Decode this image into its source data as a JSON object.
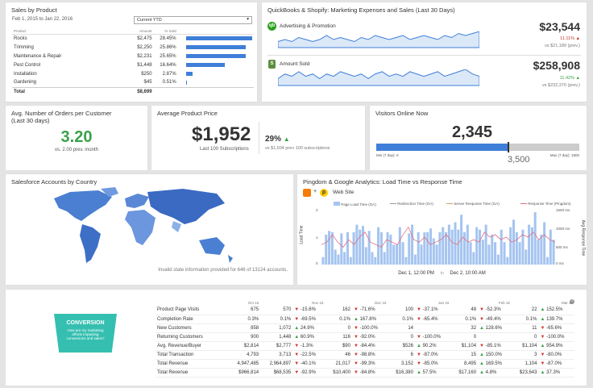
{
  "sales": {
    "title": "Sales by Product",
    "date_range": "Feb 1, 2015 to Jan 22, 2016",
    "select": "Current YTD",
    "headers": [
      "Product",
      "Amount",
      "% Sold"
    ],
    "rows": [
      {
        "product": "Rocks",
        "amount": "$2,475",
        "pct": "28.45%",
        "frac": 0.2845
      },
      {
        "product": "Trimming",
        "amount": "$2,250",
        "pct": "25.86%",
        "frac": 0.2586
      },
      {
        "product": "Maintenance & Repair",
        "amount": "$2,231",
        "pct": "25.65%",
        "frac": 0.2565
      },
      {
        "product": "Pest Control",
        "amount": "$1,448",
        "pct": "16.64%",
        "frac": 0.1664
      },
      {
        "product": "Installation",
        "amount": "$250",
        "pct": "2.87%",
        "frac": 0.0287
      },
      {
        "product": "Gardening",
        "amount": "$45",
        "pct": "0.51%",
        "frac": 0.0051
      }
    ],
    "total_label": "Total",
    "total": "$8,699"
  },
  "qb": {
    "title": "QuickBooks & Shopify: Marketing Expenses and Sales (Last 30 Days)",
    "ad_label": "Advertising & Promotion",
    "ad_value": "$23,544",
    "ad_pct": "11.11%",
    "ad_prev": "vs $21,189 (prev.)",
    "sold_label": "Amount Sold",
    "sold_value": "$258,908",
    "sold_pct": "11.42%",
    "sold_prev": "vs $232,370 (prev.)",
    "ad_series": [
      5,
      6,
      5,
      7,
      6,
      5,
      6,
      8,
      6,
      7,
      6,
      5,
      7,
      6,
      8,
      7,
      6,
      7,
      8,
      6,
      7,
      8,
      7,
      6,
      8,
      7,
      9,
      8,
      9,
      10
    ],
    "sold_series": [
      4,
      6,
      5,
      7,
      5,
      6,
      4,
      6,
      5,
      7,
      6,
      5,
      6,
      4,
      6,
      7,
      5,
      6,
      5,
      7,
      6,
      5,
      6,
      7,
      5,
      6,
      7,
      8,
      6,
      5
    ]
  },
  "orders": {
    "title": "Avg. Number of Orders per Customer (Last 30 days)",
    "value": "3.20",
    "sub": "vs. 2.00 prev. month"
  },
  "price": {
    "title": "Average Product Price",
    "value": "$1,952",
    "sub": "Last 100 Subscriptions",
    "pct": "29%",
    "prev": "vs $1,504 prev 100 subscriptions"
  },
  "visitors": {
    "title": "Visitors Online Now",
    "value": "2,345",
    "min": "Min (7 day): 0",
    "max": "Max (7 day): 1800",
    "target": "3,500",
    "frac": 0.65
  },
  "salesforce": {
    "title": "Salesforce Accounts by Country",
    "note": "Invalid state information provided for 646 of 13124 accounts."
  },
  "pingdom": {
    "title": "Pingdom & Google Analytics: Load Time vs Response Time",
    "site": "Web Site",
    "legend": [
      "Page Load Time (GA)",
      "Redirection Time (GA)",
      "Server Response Time (GA)",
      "Response Time (Pingdom)"
    ],
    "ylabel": "Load Time",
    "y2label": "Avg Response Time",
    "yticks": [
      "2",
      "1",
      "0"
    ],
    "y2ticks": [
      "1500 ms",
      "1000 ms",
      "500 ms",
      "0 ms"
    ],
    "x1": "Dec 1, 12:00 PM",
    "to": "to",
    "x2": "Dec 2, 10:00 AM",
    "bars": [
      0.3,
      1.2,
      1.35,
      1.3,
      0.6,
      0.4,
      1.25,
      0.5,
      1.3,
      0.3,
      1.3,
      1.6,
      1.4,
      1.55,
      0.7,
      1.35,
      0.5,
      0.3,
      1.5,
      1.3,
      0.5,
      1.3,
      1.2,
      0.8,
      0.8,
      1.5,
      0.9,
      0.3,
      1.25,
      1.6,
      0.4,
      1.3,
      0.8,
      1.3,
      1.3,
      1.45,
      1.05,
      0.8,
      1.3,
      1.5,
      1.3,
      1.6,
      1.4,
      1.7,
      1.4,
      2.0,
      1.3,
      1.6,
      0.9,
      0.5,
      1.5,
      1.4,
      1.0,
      1.6,
      0.8,
      1.2,
      0.9,
      0.4,
      1.4,
      0.9,
      0.3,
      1.5,
      1.8,
      1.3,
      0.9,
      1.4,
      0.6,
      1.6,
      1.5,
      2.1,
      1.0,
      1.2,
      1.7,
      0.3,
      1.4,
      1.0
    ],
    "line": [
      0.8,
      0.9,
      1.2,
      0.9,
      0.7,
      1.0,
      0.8,
      1.1,
      1.3,
      0.9,
      0.8,
      0.7,
      1.0,
      0.9,
      0.8,
      1.2,
      1.5,
      1.0,
      0.9,
      1.1,
      0.8,
      0.9,
      1.0,
      1.2,
      0.9,
      0.8,
      1.1,
      0.9,
      1.0,
      0.9,
      1.3,
      1.1,
      1.2,
      1.0,
      1.1,
      0.9,
      1.0,
      1.2,
      1.1,
      1.3,
      1.0,
      1.2,
      1.0,
      0.9
    ]
  },
  "conversion": {
    "title": "CONVERSION",
    "sub": "How are my marketing efforts impacting conversions and sales?"
  },
  "table": {
    "cols": [
      "Oct 15",
      "Nov 15",
      "Dec 15",
      "Jan 16",
      "Feb 16",
      "Mar 16"
    ],
    "rows": [
      {
        "label": "Product Page Visits",
        "v": [
          "675",
          "570",
          "162",
          "100",
          "48",
          "22"
        ],
        "d": [
          [
            "dn",
            "-15.6%"
          ],
          [
            "dn",
            "-71.6%"
          ],
          [
            "dn",
            "-37.1%"
          ],
          [
            "dn",
            "-52.3%"
          ],
          [
            "up",
            "152.5%"
          ]
        ]
      },
      {
        "label": "Completion Rate",
        "v": [
          "0.3%",
          "0.1%",
          "0.1%",
          "0.1%",
          "0.1%",
          "0.1%"
        ],
        "d": [
          [
            "dn",
            "-69.5%"
          ],
          [
            "up",
            "167.8%"
          ],
          [
            "dn",
            "-65.4%"
          ],
          [
            "dn",
            "-49.4%"
          ],
          [
            "up",
            "139.7%"
          ]
        ]
      },
      {
        "label": "New Customers",
        "v": [
          "858",
          "1,072",
          "0",
          "14",
          "32",
          "11"
        ],
        "d": [
          [
            "up",
            "24.9%"
          ],
          [
            "dn",
            "-100.0%"
          ],
          [
            "",
            ""
          ],
          [
            "up",
            "128.6%"
          ],
          [
            "dn",
            "-65.6%"
          ]
        ]
      },
      {
        "label": "Returning Customers",
        "v": [
          "900",
          "1,448",
          "116",
          "0",
          "0",
          "0"
        ],
        "d": [
          [
            "up",
            "60.9%"
          ],
          [
            "dn",
            "-92.0%"
          ],
          [
            "dn",
            "-100.0%"
          ],
          [
            "",
            ""
          ],
          [
            "dn",
            "-100.0%"
          ]
        ]
      },
      {
        "label": "Avg. Revenue/Buyer",
        "v": [
          "$2,814",
          "$2,777",
          "$90",
          "$526",
          "$1,104",
          "$1,104"
        ],
        "d": [
          [
            "dn",
            "-1.3%"
          ],
          [
            "dn",
            "-84.4%"
          ],
          [
            "up",
            "90.2%"
          ],
          [
            "dn",
            "-85.1%"
          ],
          [
            "up",
            "954.9%"
          ]
        ]
      },
      {
        "label": "Total Transaction",
        "v": [
          "4,793",
          "3,713",
          "46",
          "6",
          "15",
          "3"
        ],
        "d": [
          [
            "dn",
            "-22.5%"
          ],
          [
            "dn",
            "-98.8%"
          ],
          [
            "dn",
            "-87.0%"
          ],
          [
            "up",
            "150.0%"
          ],
          [
            "dn",
            "-80.0%"
          ]
        ]
      },
      {
        "label": "Total Revenue",
        "v": [
          "4,947,485",
          "2,964,897",
          "21,017",
          "3,152",
          "8,495",
          "1,104"
        ],
        "d": [
          [
            "dn",
            "-40.1%"
          ],
          [
            "dn",
            "-99.3%"
          ],
          [
            "dn",
            "-85.0%"
          ],
          [
            "up",
            "169.5%"
          ],
          [
            "dn",
            "-87.0%"
          ]
        ]
      },
      {
        "label": "Total Revenue",
        "v": [
          "$966,814",
          "$68,535",
          "$10,400",
          "$16,380",
          "$17,160",
          "$23,643"
        ],
        "d": [
          [
            "dn",
            "-92.9%"
          ],
          [
            "dn",
            "-84.8%"
          ],
          [
            "up",
            "57.5%"
          ],
          [
            "up",
            "4.8%"
          ],
          [
            "up",
            "37.3%"
          ]
        ]
      }
    ]
  }
}
